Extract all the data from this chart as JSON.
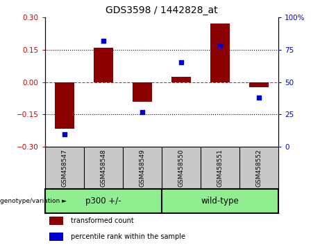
{
  "title": "GDS3598 / 1442828_at",
  "samples": [
    "GSM458547",
    "GSM458548",
    "GSM458549",
    "GSM458550",
    "GSM458551",
    "GSM458552"
  ],
  "transformed_count": [
    -0.215,
    0.16,
    -0.09,
    0.025,
    0.27,
    -0.025
  ],
  "percentile_rank": [
    10,
    82,
    27,
    65,
    78,
    38
  ],
  "group1_label": "p300 +/-",
  "group2_label": "wild-type",
  "group1_indices": [
    0,
    1,
    2
  ],
  "group2_indices": [
    3,
    4,
    5
  ],
  "group_color": "#90EE90",
  "group_border_color": "#228B22",
  "sample_box_color": "#C8C8C8",
  "bar_color": "#8B0000",
  "dot_color": "#0000CD",
  "ylim_left": [
    -0.3,
    0.3
  ],
  "ylim_right": [
    0,
    100
  ],
  "yticks_left": [
    -0.3,
    -0.15,
    0,
    0.15,
    0.3
  ],
  "yticks_right": [
    0,
    25,
    50,
    75,
    100
  ],
  "hlines_dotted": [
    -0.15,
    0.15
  ],
  "hline_dashed": 0.0,
  "legend_items": [
    {
      "label": "transformed count",
      "color": "#8B0000"
    },
    {
      "label": "percentile rank within the sample",
      "color": "#0000CD"
    }
  ],
  "genotype_label": "genotype/variation ►"
}
